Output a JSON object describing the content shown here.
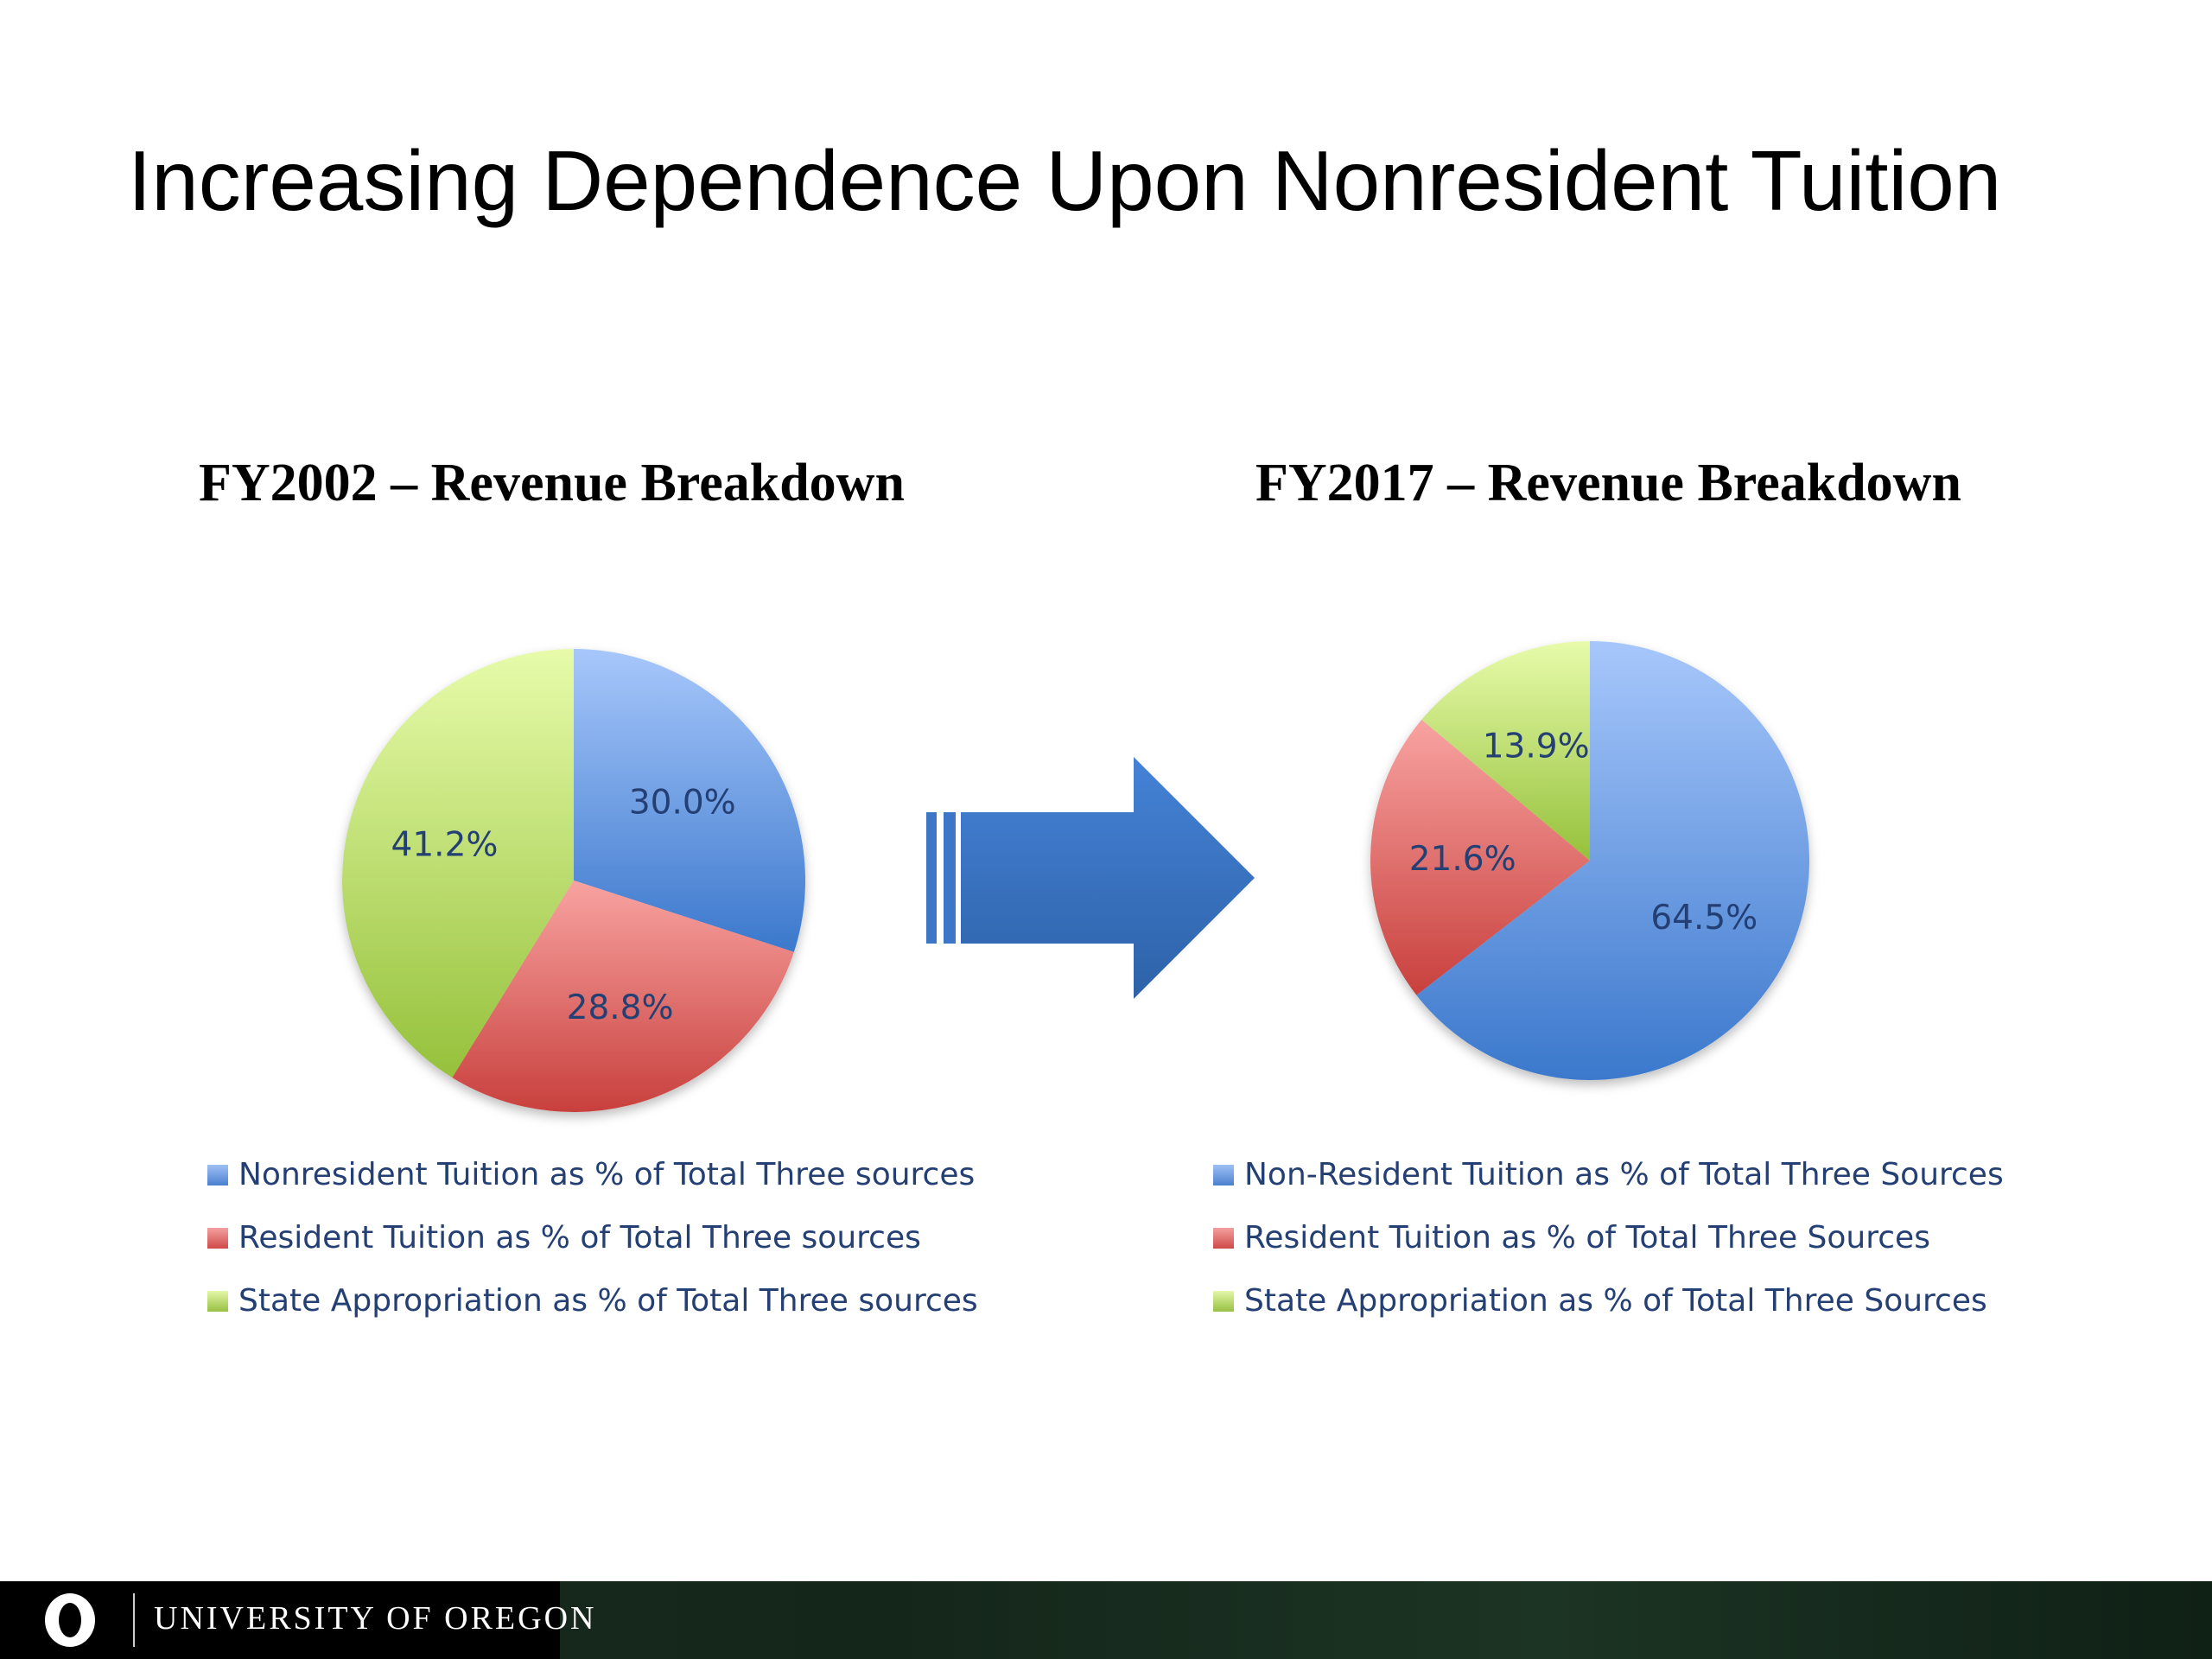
{
  "slide": {
    "title": "Increasing Dependence Upon Nonresident Tuition"
  },
  "colors": {
    "blue": "#4f81bd",
    "red": "#c0504d",
    "green": "#9bbb59",
    "arrow": "#3b74c2",
    "label": "#243f73"
  },
  "chart_data": [
    {
      "type": "pie",
      "title": "FY2002 – Revenue Breakdown",
      "labels": [
        "Nonresident Tuition as % of Total Three sources",
        "Resident Tuition as % of Total Three sources",
        "State Appropriation as % of Total Three sources"
      ],
      "values": [
        30.0,
        28.8,
        41.2
      ],
      "data_labels": [
        "30.0%",
        "28.8%",
        "41.2%"
      ],
      "legend_position": "bottom"
    },
    {
      "type": "pie",
      "title": "FY2017 – Revenue Breakdown",
      "labels": [
        "Non-Resident Tuition as % of Total Three Sources",
        "Resident Tuition as % of Total Three Sources",
        "State Appropriation as % of Total Three Sources"
      ],
      "values": [
        64.5,
        21.6,
        13.9
      ],
      "data_labels": [
        "64.5%",
        "21.6%",
        "13.9%"
      ],
      "legend_position": "bottom"
    }
  ],
  "arrow_icon": "right-arrow-icon",
  "footer": {
    "logo_icon": "o-logo-icon",
    "institution": "UNIVERSITY OF OREGON"
  }
}
